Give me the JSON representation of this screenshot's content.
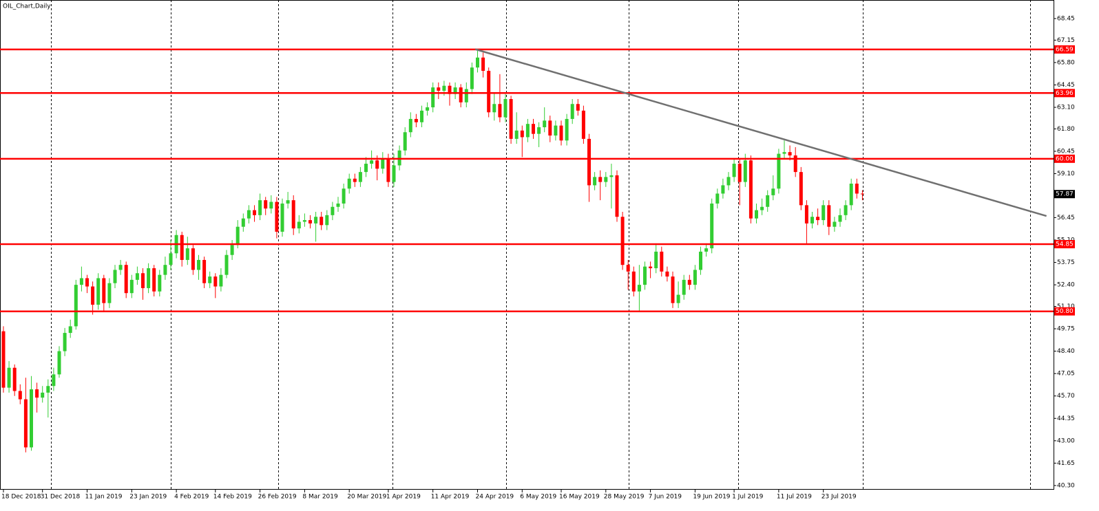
{
  "chart_data": {
    "type": "candlestick",
    "title": "OIL_Chart,Daily",
    "categories": [
      "18 Dec 2018",
      null,
      null,
      null,
      null,
      null,
      null,
      "31 Dec 2018",
      null,
      null,
      null,
      null,
      null,
      null,
      null,
      "11 Jan 2019",
      null,
      null,
      null,
      null,
      null,
      null,
      null,
      "23 Jan 2019",
      null,
      null,
      null,
      null,
      null,
      null,
      null,
      "4 Feb 2019",
      null,
      null,
      null,
      null,
      null,
      null,
      "14 Feb 2019",
      null,
      null,
      null,
      null,
      null,
      null,
      null,
      "26 Feb 2019",
      null,
      null,
      null,
      null,
      null,
      null,
      null,
      "8 Mar 2019",
      null,
      null,
      null,
      null,
      null,
      null,
      null,
      "20 Mar 2019",
      null,
      null,
      null,
      null,
      null,
      null,
      "1 Apr 2019",
      null,
      null,
      null,
      null,
      null,
      null,
      null,
      "11 Apr 2019",
      null,
      null,
      null,
      null,
      null,
      null,
      null,
      "24 Apr 2019",
      null,
      null,
      null,
      null,
      null,
      null,
      null,
      "6 May 2019",
      null,
      null,
      null,
      null,
      null,
      null,
      "16 May 2019",
      null,
      null,
      null,
      null,
      null,
      null,
      null,
      "28 May 2019",
      null,
      null,
      null,
      null,
      null,
      null,
      null,
      "7 Jun 2019",
      null,
      null,
      null,
      null,
      null,
      null,
      null,
      "19 Jun 2019",
      null,
      null,
      null,
      null,
      null,
      null,
      "1 Jul 2019",
      null,
      null,
      null,
      null,
      null,
      null,
      null,
      "11 Jul 2019",
      null,
      null,
      null,
      null,
      null,
      null,
      null,
      "23 Jul 2019",
      null,
      null,
      null,
      null,
      null,
      null,
      null
    ],
    "open": [
      49.6,
      46.2,
      47.4,
      46.0,
      45.5,
      42.6,
      46.1,
      45.6,
      45.9,
      46.3,
      47.0,
      48.4,
      49.5,
      49.9,
      52.4,
      52.8,
      52.3,
      51.2,
      52.8,
      51.3,
      52.5,
      53.3,
      53.6,
      51.9,
      52.7,
      53.1,
      52.2,
      53.4,
      52.0,
      53.0,
      53.6,
      54.3,
      55.4,
      53.9,
      54.6,
      53.3,
      53.9,
      52.5,
      52.9,
      52.3,
      53.0,
      54.2,
      54.8,
      55.9,
      56.4,
      56.9,
      56.6,
      57.5,
      57.0,
      57.4,
      55.6,
      57.3,
      57.5,
      55.8,
      56.2,
      56.3,
      56.1,
      56.5,
      56.0,
      56.6,
      57.1,
      57.3,
      58.2,
      58.8,
      58.6,
      59.2,
      59.7,
      59.9,
      59.4,
      60.0,
      58.6,
      59.6,
      60.5,
      61.6,
      62.4,
      62.2,
      62.9,
      63.1,
      64.3,
      64.1,
      64.4,
      63.9,
      64.3,
      63.4,
      64.2,
      65.5,
      66.1,
      65.3,
      62.8,
      63.3,
      62.5,
      63.6,
      61.2,
      61.7,
      61.3,
      62.1,
      61.5,
      61.9,
      62.3,
      61.4,
      62.0,
      61.1,
      62.4,
      63.3,
      62.9,
      61.2,
      58.4,
      58.9,
      58.6,
      58.9,
      59.0,
      56.5,
      53.6,
      53.2,
      52.0,
      52.4,
      53.5,
      53.4,
      54.4,
      53.2,
      52.9,
      51.3,
      51.8,
      52.7,
      52.4,
      53.3,
      54.4,
      54.6,
      57.3,
      57.9,
      58.4,
      58.9,
      59.7,
      58.6,
      59.9,
      56.4,
      56.9,
      57.1,
      57.8,
      58.2,
      60.3,
      60.4,
      60.2,
      59.2,
      57.2,
      56.1,
      56.5,
      56.3,
      57.2,
      55.9,
      56.2,
      56.6,
      57.2,
      58.5,
      57.9
    ],
    "high": [
      49.9,
      47.8,
      47.6,
      46.4,
      46.8,
      46.9,
      46.5,
      46.3,
      46.7,
      47.4,
      48.7,
      49.8,
      50.3,
      52.7,
      53.5,
      53.0,
      52.6,
      53.1,
      53.0,
      52.8,
      53.6,
      53.9,
      53.8,
      53.0,
      53.5,
      53.4,
      53.7,
      53.6,
      53.3,
      54.1,
      55.1,
      55.7,
      55.6,
      55.3,
      54.8,
      54.2,
      54.1,
      53.2,
      53.1,
      53.4,
      54.5,
      55.1,
      56.3,
      56.7,
      57.2,
      57.2,
      57.9,
      57.7,
      57.8,
      57.7,
      57.6,
      58.0,
      57.8,
      56.6,
      56.7,
      56.6,
      56.8,
      56.8,
      56.9,
      57.4,
      57.7,
      58.5,
      59.1,
      59.1,
      59.5,
      60.1,
      60.5,
      60.2,
      60.4,
      60.3,
      60.3,
      60.8,
      61.9,
      62.8,
      62.7,
      63.2,
      63.4,
      64.6,
      64.6,
      64.7,
      64.6,
      64.6,
      64.5,
      64.6,
      65.8,
      66.5,
      66.4,
      65.5,
      64.0,
      65.1,
      63.9,
      63.8,
      62.8,
      62.0,
      62.4,
      62.4,
      62.2,
      63.1,
      62.6,
      62.3,
      62.3,
      62.7,
      63.6,
      63.6,
      63.2,
      61.5,
      59.2,
      59.3,
      59.2,
      59.7,
      59.3,
      56.8,
      53.9,
      53.5,
      53.6,
      53.8,
      53.8,
      54.9,
      54.7,
      53.5,
      53.2,
      52.6,
      53.0,
      53.0,
      53.6,
      54.7,
      54.9,
      57.6,
      58.2,
      58.8,
      59.2,
      60.0,
      60.0,
      60.3,
      60.2,
      57.3,
      57.6,
      58.1,
      59.0,
      60.6,
      61.1,
      60.8,
      60.7,
      59.5,
      57.5,
      56.8,
      57.0,
      57.5,
      57.5,
      56.5,
      57.0,
      57.5,
      58.8,
      58.8,
      58.1
    ],
    "low": [
      45.9,
      45.9,
      45.7,
      45.2,
      42.3,
      42.4,
      44.7,
      45.3,
      44.4,
      46.0,
      46.8,
      48.1,
      49.2,
      49.7,
      52.0,
      51.9,
      50.6,
      50.9,
      50.8,
      51.0,
      52.2,
      53.0,
      51.6,
      51.6,
      52.4,
      51.5,
      51.9,
      51.7,
      51.7,
      52.7,
      53.3,
      54.0,
      53.5,
      53.6,
      53.0,
      52.7,
      52.2,
      52.2,
      51.6,
      52.0,
      52.8,
      53.9,
      54.6,
      55.6,
      56.1,
      56.2,
      56.3,
      56.6,
      56.7,
      55.2,
      55.3,
      57.0,
      55.4,
      55.5,
      55.9,
      55.8,
      55.0,
      55.7,
      55.7,
      56.3,
      56.8,
      57.0,
      57.9,
      58.3,
      58.3,
      58.9,
      59.4,
      58.7,
      59.1,
      58.3,
      58.3,
      59.3,
      60.2,
      61.3,
      61.9,
      61.9,
      62.6,
      62.8,
      63.6,
      63.8,
      63.2,
      63.6,
      63.1,
      63.1,
      63.9,
      65.2,
      64.9,
      62.5,
      62.3,
      62.2,
      62.2,
      60.9,
      60.9,
      60.1,
      61.0,
      61.2,
      60.7,
      61.6,
      61.0,
      61.1,
      60.8,
      60.8,
      62.1,
      62.6,
      60.9,
      57.4,
      58.1,
      57.5,
      58.3,
      57.0,
      56.2,
      53.3,
      52.1,
      51.7,
      50.8,
      52.1,
      52.8,
      53.1,
      52.9,
      52.6,
      51.0,
      51.0,
      51.5,
      52.1,
      52.1,
      53.0,
      54.1,
      54.3,
      57.0,
      57.6,
      58.1,
      58.6,
      57.2,
      58.3,
      56.1,
      56.1,
      56.6,
      56.8,
      57.5,
      57.9,
      60.0,
      59.9,
      58.9,
      56.9,
      54.9,
      55.8,
      56.0,
      56.0,
      55.4,
      55.6,
      55.9,
      56.3,
      56.9,
      57.6,
      57.5
    ],
    "close": [
      46.2,
      47.4,
      46.0,
      45.5,
      42.6,
      46.1,
      45.6,
      45.9,
      46.3,
      47.0,
      48.4,
      49.5,
      49.9,
      52.4,
      52.8,
      52.3,
      51.2,
      52.8,
      51.3,
      52.5,
      53.3,
      53.6,
      51.9,
      52.7,
      53.1,
      52.2,
      53.4,
      52.0,
      53.0,
      53.6,
      54.3,
      55.4,
      53.9,
      54.6,
      53.3,
      53.9,
      52.5,
      52.9,
      52.3,
      53.0,
      54.2,
      54.8,
      55.9,
      56.4,
      56.9,
      56.6,
      57.5,
      57.0,
      57.4,
      55.6,
      57.3,
      57.5,
      55.8,
      56.2,
      56.3,
      56.1,
      56.5,
      56.0,
      56.6,
      57.1,
      57.3,
      58.2,
      58.8,
      58.6,
      59.2,
      59.7,
      59.9,
      59.4,
      60.0,
      58.6,
      59.6,
      60.5,
      61.6,
      62.4,
      62.2,
      62.9,
      63.1,
      64.3,
      64.1,
      64.4,
      63.9,
      64.3,
      63.4,
      64.2,
      65.5,
      66.1,
      65.3,
      62.8,
      63.3,
      62.5,
      63.6,
      61.2,
      61.7,
      61.3,
      62.1,
      61.5,
      61.9,
      62.3,
      61.4,
      62.0,
      61.1,
      62.4,
      63.3,
      62.9,
      61.2,
      58.4,
      58.9,
      58.6,
      58.9,
      59.0,
      56.5,
      53.6,
      53.2,
      52.0,
      52.4,
      53.5,
      53.4,
      54.4,
      53.2,
      52.9,
      51.3,
      51.8,
      52.7,
      52.4,
      53.3,
      54.4,
      54.6,
      57.3,
      57.9,
      58.4,
      58.9,
      59.7,
      58.6,
      59.9,
      56.4,
      56.9,
      57.1,
      57.8,
      58.2,
      60.3,
      60.4,
      60.2,
      59.2,
      57.2,
      56.1,
      56.5,
      56.3,
      57.2,
      55.9,
      56.2,
      56.6,
      57.2,
      58.5,
      57.9,
      57.87
    ],
    "up_color": "#32cd32",
    "down_color": "#ff0000",
    "ylim": [
      40.05,
      69.57
    ],
    "yticks": [
      68.45,
      67.15,
      {
        "value": 65.8,
        "label": "65.80"
      },
      64.45,
      {
        "value": 63.1,
        "label": "63.10"
      },
      {
        "value": 61.8,
        "label": "61.80"
      },
      60.45,
      {
        "value": 59.1,
        "label": "59.10"
      },
      56.45,
      {
        "value": 55.1,
        "label": "55.10"
      },
      53.75,
      {
        "value": 52.4,
        "label": "52.40"
      },
      {
        "value": 51.1,
        "label": "51.10"
      },
      49.75,
      {
        "value": 48.4,
        "label": "48.40"
      },
      47.05,
      {
        "value": 45.7,
        "label": "45.70"
      },
      44.35,
      {
        "value": 43,
        "label": "43.00"
      },
      41.65,
      {
        "value": 40.3,
        "label": "40.30"
      }
    ],
    "levels": [
      66.59,
      63.96,
      {
        "value": 60,
        "label": "60.00"
      },
      54.85,
      {
        "value": 50.8,
        "label": "50.80"
      }
    ],
    "level_color": "#ff0000",
    "trendline": {
      "x": [
        84.6,
        187
      ],
      "y": [
        66.6,
        56.55
      ],
      "color": "#707070"
    }
  }
}
